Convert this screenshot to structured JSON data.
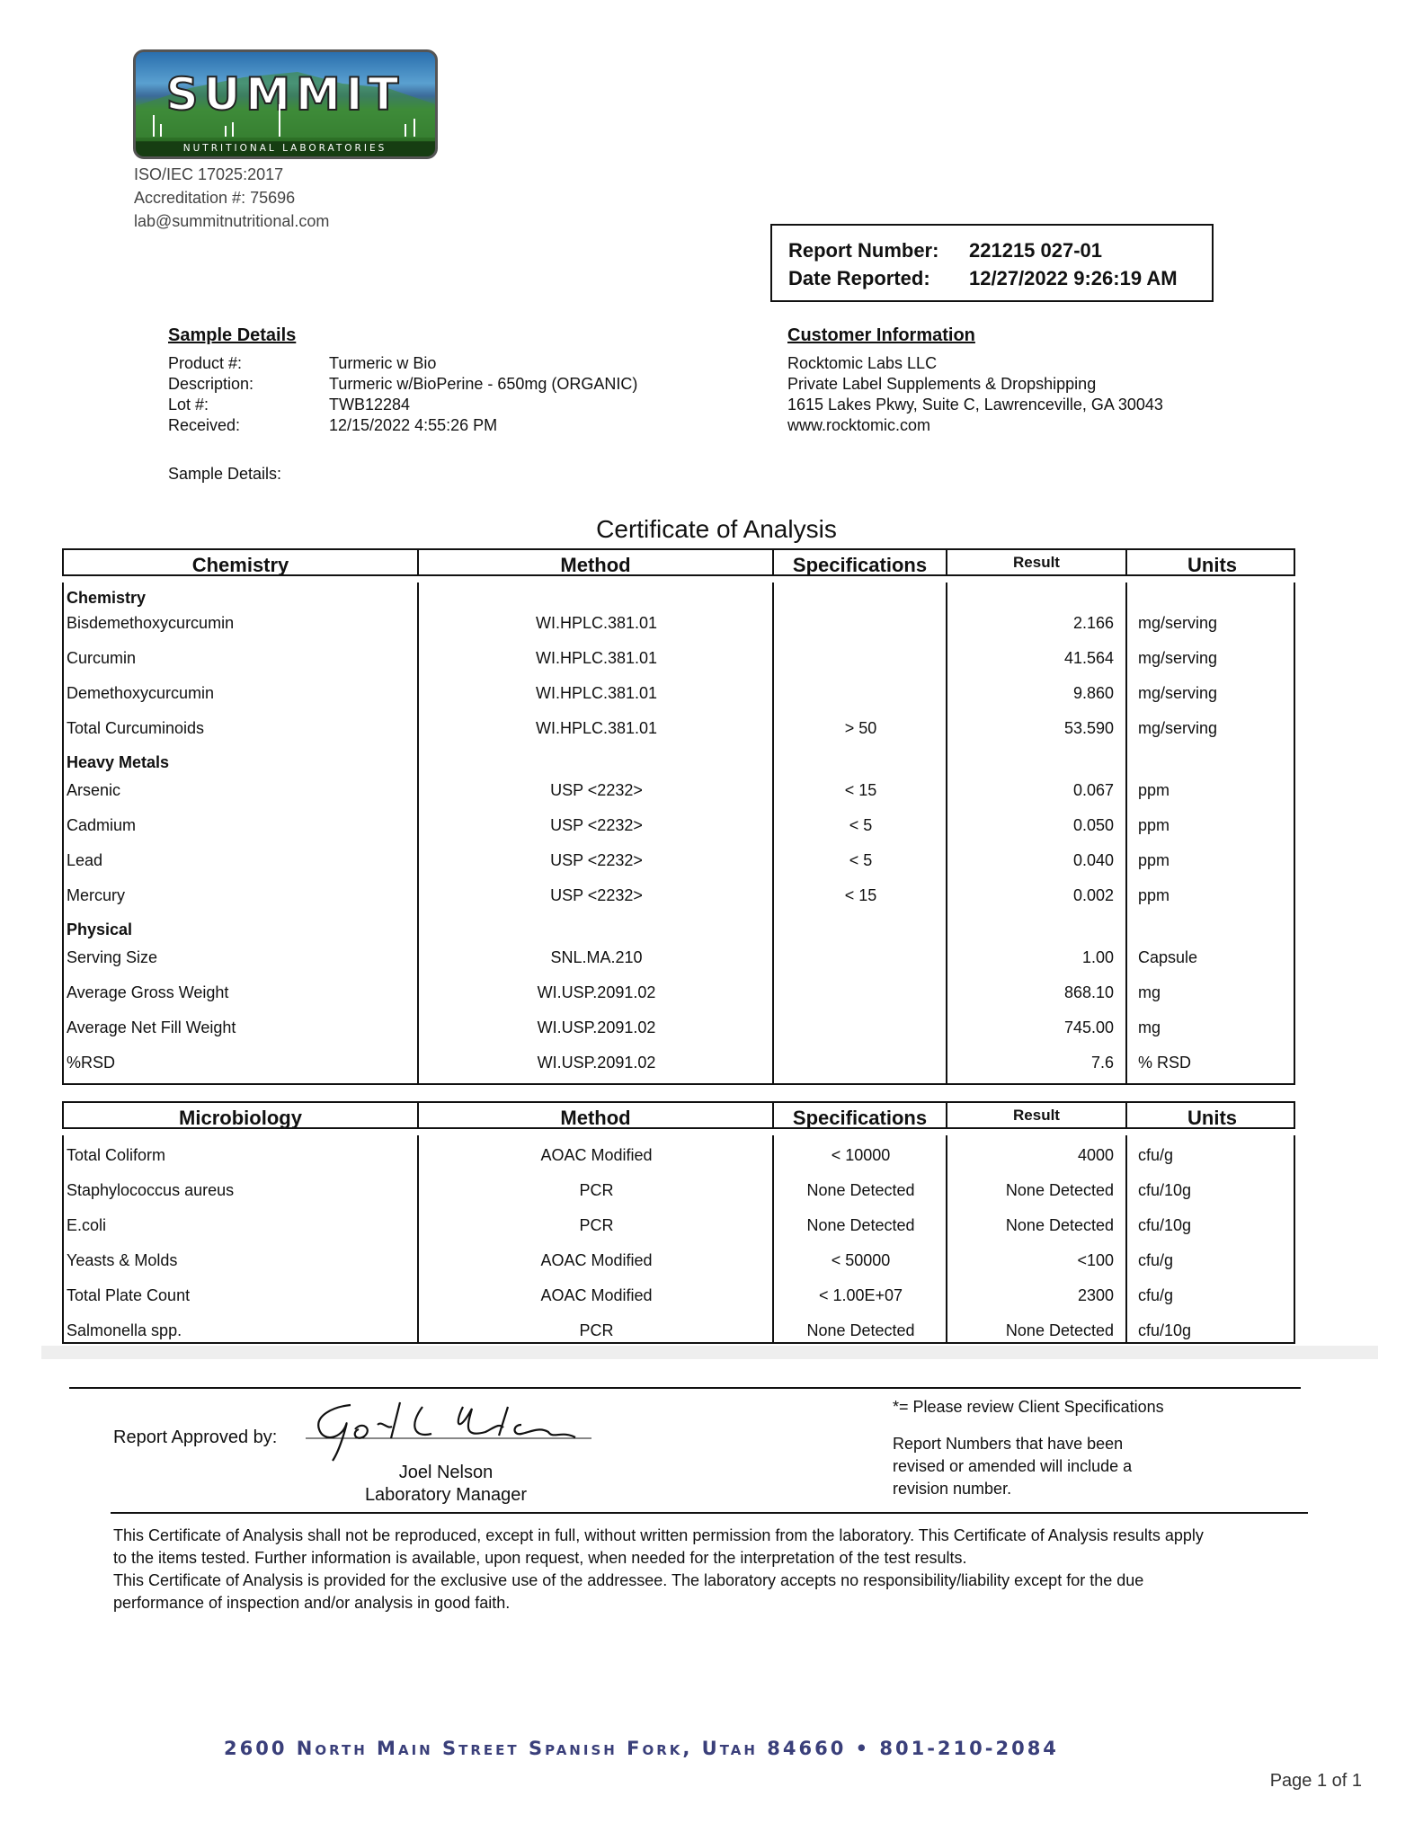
{
  "lab": {
    "logo_name": "SUMMIT",
    "logo_sub": "NUTRITIONAL LABORATORIES",
    "iso": "ISO/IEC 17025:2017",
    "accreditation": "Accreditation #: 75696",
    "email": "lab@summitnutritional.com"
  },
  "report": {
    "number_label": "Report Number:",
    "number": "221215 027-01",
    "date_label": "Date Reported:",
    "date": "12/27/2022 9:26:19 AM"
  },
  "sample": {
    "heading": "Sample Details",
    "fields": [
      {
        "label": "Product #:",
        "value": "Turmeric w Bio"
      },
      {
        "label": "Description:",
        "value": "Turmeric w/BioPerine - 650mg (ORGANIC)"
      },
      {
        "label": "Lot #:",
        "value": "TWB12284"
      },
      {
        "label": "Received:",
        "value": "12/15/2022 4:55:26 PM"
      }
    ],
    "details_label": "Sample Details:"
  },
  "customer": {
    "heading": "Customer Information",
    "lines": [
      "Rocktomic Labs LLC",
      "Private Label Supplements & Dropshipping",
      "1615 Lakes Pkwy, Suite C, Lawrenceville, GA 30043",
      "www.rocktomic.com"
    ]
  },
  "title": "Certificate of Analysis",
  "chemistry": {
    "headers": [
      "Chemistry",
      "Method",
      "Specifications",
      "Result",
      "Units"
    ],
    "rows": [
      {
        "section": "Chemistry"
      },
      {
        "name": "Bisdemethoxycurcumin",
        "method": "WI.HPLC.381.01",
        "spec": "",
        "result": "2.166",
        "units": "mg/serving"
      },
      {
        "name": "Curcumin",
        "method": "WI.HPLC.381.01",
        "spec": "",
        "result": "41.564",
        "units": "mg/serving"
      },
      {
        "name": "Demethoxycurcumin",
        "method": "WI.HPLC.381.01",
        "spec": "",
        "result": "9.860",
        "units": "mg/serving"
      },
      {
        "name": "Total Curcuminoids",
        "method": "WI.HPLC.381.01",
        "spec": "> 50",
        "result": "53.590",
        "units": "mg/serving"
      },
      {
        "section": "Heavy Metals"
      },
      {
        "name": "Arsenic",
        "method": "USP <2232>",
        "spec": "< 15",
        "result": "0.067",
        "units": "ppm"
      },
      {
        "name": "Cadmium",
        "method": "USP <2232>",
        "spec": "< 5",
        "result": "0.050",
        "units": "ppm"
      },
      {
        "name": "Lead",
        "method": "USP <2232>",
        "spec": "< 5",
        "result": "0.040",
        "units": "ppm"
      },
      {
        "name": "Mercury",
        "method": "USP <2232>",
        "spec": "< 15",
        "result": "0.002",
        "units": "ppm"
      },
      {
        "section": "Physical"
      },
      {
        "name": "Serving Size",
        "method": "SNL.MA.210",
        "spec": "",
        "result": "1.00",
        "units": "Capsule"
      },
      {
        "name": "Average Gross Weight",
        "method": "WI.USP.2091.02",
        "spec": "",
        "result": "868.10",
        "units": "mg"
      },
      {
        "name": "Average Net Fill Weight",
        "method": "WI.USP.2091.02",
        "spec": "",
        "result": "745.00",
        "units": "mg"
      },
      {
        "name": "%RSD",
        "method": "WI.USP.2091.02",
        "spec": "",
        "result": "7.6",
        "units": "% RSD"
      }
    ]
  },
  "micro": {
    "headers": [
      "Microbiology",
      "Method",
      "Specifications",
      "Result",
      "Units"
    ],
    "rows": [
      {
        "name": "Total Coliform",
        "method": "AOAC Modified",
        "spec": "< 10000",
        "result": "4000",
        "units": "cfu/g"
      },
      {
        "name": "Staphylococcus aureus",
        "method": "PCR",
        "spec": "None Detected",
        "result": "None Detected",
        "units": "cfu/10g"
      },
      {
        "name": "E.coli",
        "method": "PCR",
        "spec": "None Detected",
        "result": "None Detected",
        "units": "cfu/10g"
      },
      {
        "name": "Yeasts & Molds",
        "method": "AOAC Modified",
        "spec": "< 50000",
        "result": "<100",
        "units": "cfu/g"
      },
      {
        "name": "Total Plate Count",
        "method": "AOAC Modified",
        "spec": "< 1.00E+07",
        "result": "2300",
        "units": "cfu/g"
      },
      {
        "name": "Salmonella spp.",
        "method": "PCR",
        "spec": "None Detected",
        "result": "None Detected",
        "units": "cfu/10g"
      }
    ]
  },
  "approval": {
    "label": "Report Approved by:",
    "signature": "Joel L Nelson",
    "name": "Joel Nelson",
    "role": "Laboratory Manager",
    "note1": "*= Please review Client Specifications",
    "note2": [
      "Report Numbers that have been",
      "revised or amended will include a",
      "revision number."
    ]
  },
  "disclaimer": [
    "This Certificate of Analysis shall not be reproduced, except in full, without written permission from the laboratory. This Certificate of Analysis results apply",
    "to the items tested. Further information is available, upon request, when needed for the interpretation of the test results.",
    "This Certificate of Analysis is provided for the exclusive use of the addressee. The laboratory accepts no responsibility/liability except for the due",
    "performance of inspection and/or analysis in good faith."
  ],
  "footer": {
    "address": "2600 North Main Street Spanish Fork, Utah  84660 • 801-210-2084",
    "page": "Page 1 of 1"
  },
  "colors": {
    "address": "#3a3f7a"
  }
}
